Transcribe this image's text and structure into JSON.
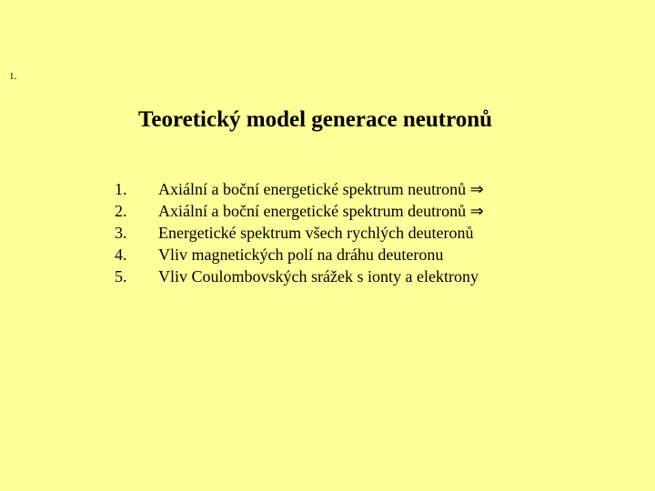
{
  "slide": {
    "marker": "1.",
    "title": "Teoretický model generace neutronů",
    "background_color": "#ffff99",
    "text_color": "#000000",
    "title_fontsize": 25,
    "body_fontsize": 18,
    "marker_fontsize": 11,
    "font_family": "Times New Roman"
  },
  "list": [
    {
      "num": "1.",
      "text": "Axiální a boční energetické spektrum neutronů ⇒"
    },
    {
      "num": "2.",
      "text": "Axiální a boční energetické spektrum deutronů ⇒"
    },
    {
      "num": "3.",
      "text": "Energetické spektrum všech rychlých deuteronů"
    },
    {
      "num": "4.",
      "text": "Vliv magnetických polí na dráhu deuteronu"
    },
    {
      "num": "5.",
      "text": "Vliv Coulombovských srážek s ionty a elektrony"
    }
  ]
}
